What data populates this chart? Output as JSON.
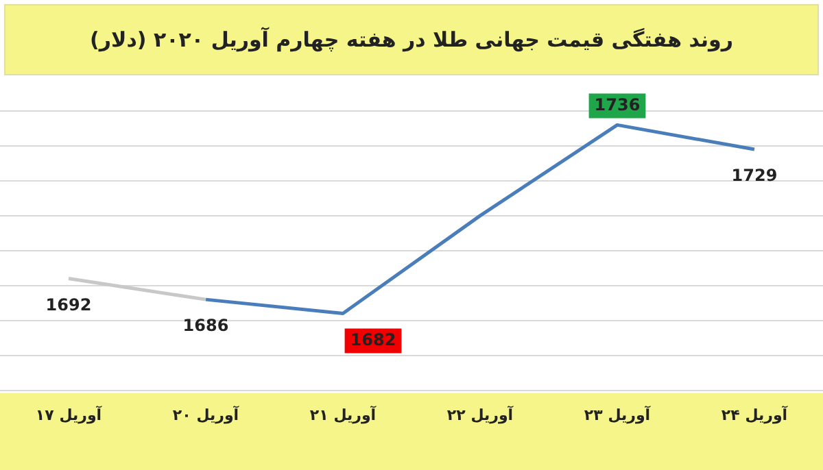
{
  "chart_data": {
    "type": "line",
    "title": "روند هفتگی قیمت جهانی طلا در هفته چهارم آوریل ۲۰۲۰ (دلار)",
    "categories": [
      "۱۷ آوریل",
      "۲۰ آوریل",
      "۲۱ آوریل",
      "۲۲ آوریل",
      "۲۳ آوریل",
      "۲۴ آوریل"
    ],
    "series": [
      {
        "values": [
          1692,
          1686,
          null,
          null,
          null,
          null
        ],
        "color": "#c8c8c8",
        "value_labels": [
          "1692",
          null,
          null,
          null,
          null,
          null
        ]
      },
      {
        "values": [
          null,
          1686,
          1682,
          1710,
          1736,
          1729
        ],
        "color": "#4a7ebb",
        "value_labels": [
          null,
          "1686",
          "1682",
          null,
          "1736",
          "1729"
        ]
      }
    ],
    "yticks": [
      {
        "value": 1660,
        "label": null
      },
      {
        "value": 1670,
        "label": null
      },
      {
        "value": 1680,
        "label": null
      },
      {
        "value": 1690,
        "label": null
      },
      {
        "value": 1700,
        "label": null
      },
      {
        "value": 1710,
        "label": null
      },
      {
        "value": 1720,
        "label": null
      },
      {
        "value": 1730,
        "label": null
      },
      {
        "value": 1740,
        "label": null
      }
    ],
    "grid": "y",
    "tick_labels": "x"
  }
}
